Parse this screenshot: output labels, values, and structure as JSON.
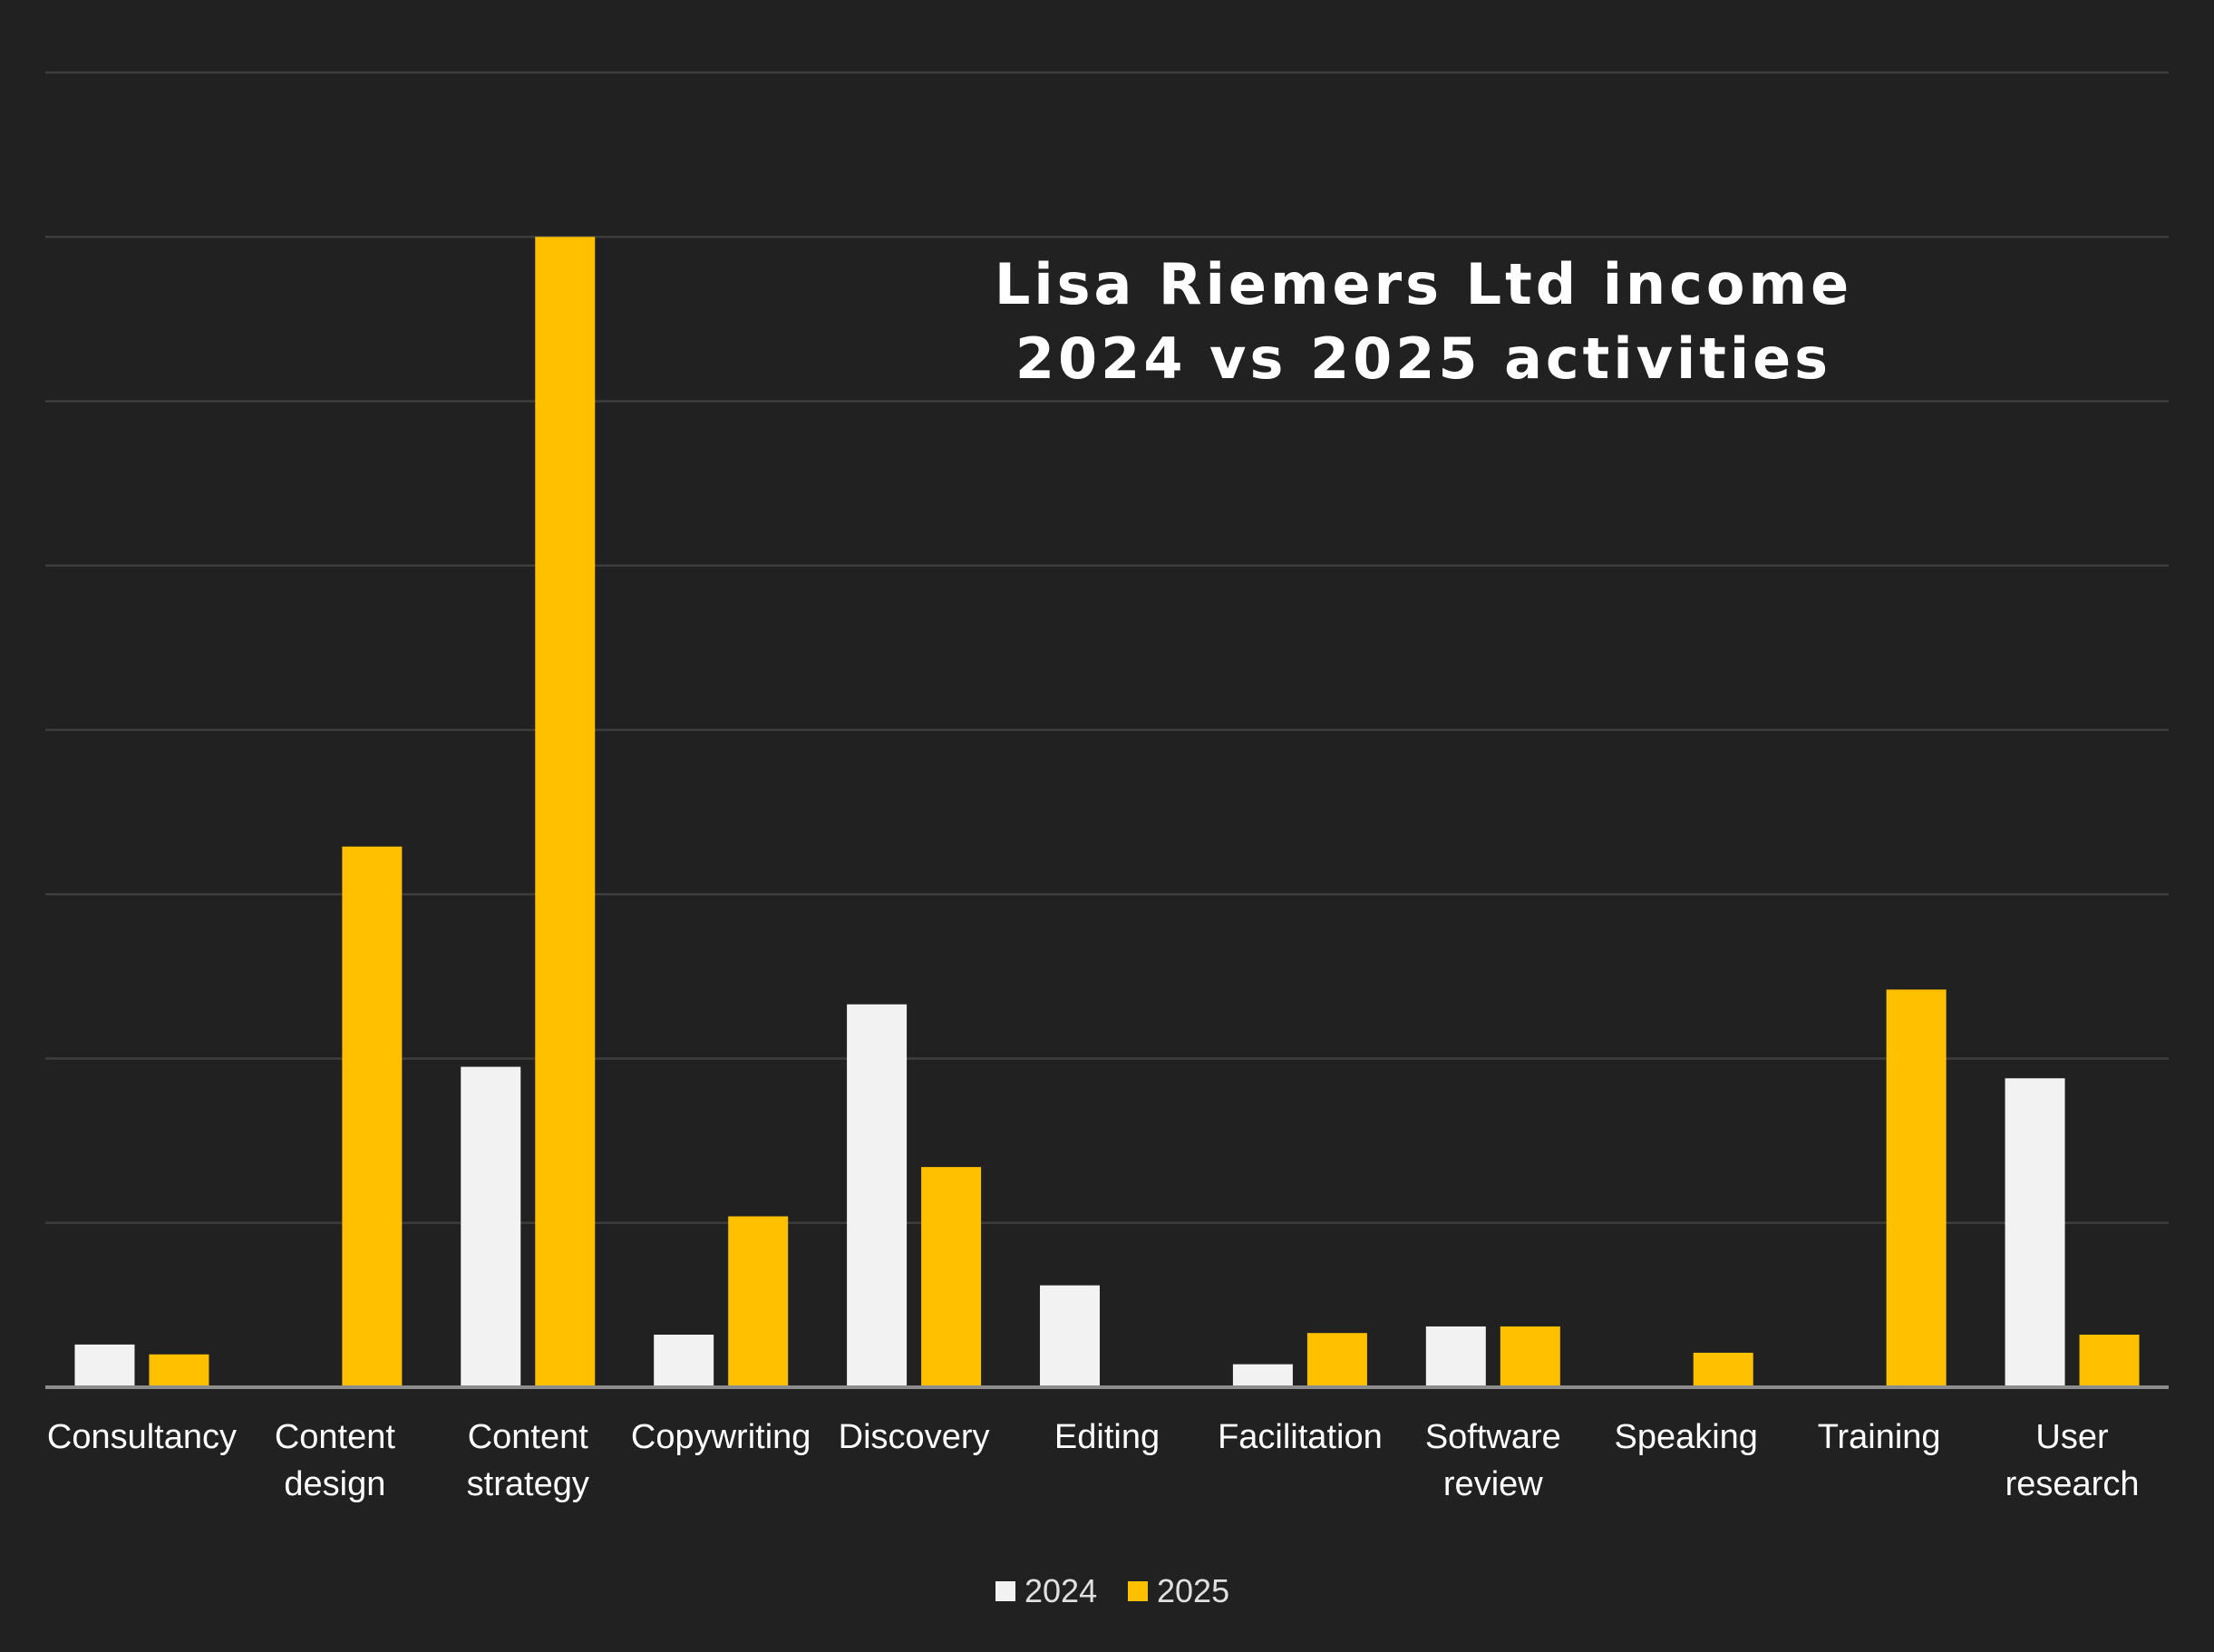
{
  "chart_data": {
    "type": "bar",
    "title_lines": [
      "Lisa Riemers Ltd income",
      "2024 vs 2025 activities"
    ],
    "categories": [
      [
        "Consultancy"
      ],
      [
        "Content",
        "design"
      ],
      [
        "Content",
        "strategy"
      ],
      [
        "Copywriting"
      ],
      [
        "Discovery"
      ],
      [
        "Editing"
      ],
      [
        "Facilitation"
      ],
      [
        "Software",
        "review"
      ],
      [
        "Speaking"
      ],
      [
        "Training"
      ],
      [
        "User",
        "research"
      ]
    ],
    "series": [
      {
        "name": "2024",
        "color": "#f2f2f2",
        "values": [
          0.26,
          0,
          1.95,
          0.32,
          2.33,
          0.62,
          0.14,
          0.37,
          0,
          0,
          1.88
        ]
      },
      {
        "name": "2025",
        "color": "#ffc000",
        "values": [
          0.2,
          3.29,
          7.0,
          1.04,
          1.34,
          0,
          0.33,
          0.37,
          0.21,
          2.42,
          0.32
        ]
      }
    ],
    "ylim": [
      0,
      8
    ],
    "grid": true,
    "legend_position": "bottom"
  }
}
